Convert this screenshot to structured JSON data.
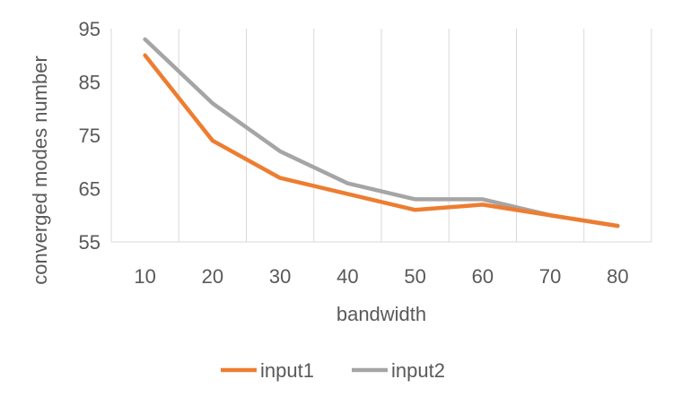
{
  "chart_data": {
    "type": "line",
    "x": [
      10,
      20,
      30,
      40,
      50,
      60,
      70,
      80
    ],
    "series": [
      {
        "name": "input1",
        "values": [
          90,
          74,
          67,
          64,
          61,
          62,
          60,
          58
        ],
        "color": "#ED7D31"
      },
      {
        "name": "input2",
        "values": [
          93,
          81,
          72,
          66,
          63,
          63,
          60,
          58
        ],
        "color": "#A5A5A5"
      }
    ],
    "xlabel": "bandwidth",
    "ylabel": "converged modes number",
    "ylim": [
      55,
      95
    ],
    "yticks": [
      55,
      65,
      75,
      85,
      95
    ],
    "grid": "vertical",
    "legend_position": "bottom"
  }
}
